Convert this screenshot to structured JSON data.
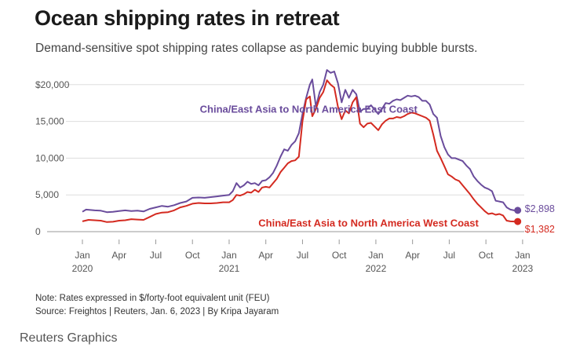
{
  "header": {
    "title": "Ocean shipping rates in retreat",
    "subtitle": "Demand-sensitive spot shipping rates collapse as pandemic buying bubble bursts."
  },
  "footer": {
    "note": "Note: Rates expressed in $/forty-foot equivalent unit (FEU)",
    "source": "Source: Freightos | Reuters, Jan. 6, 2023 | By Kripa Jayaram",
    "brand": "Reuters Graphics"
  },
  "colors": {
    "east": "#6a4c9c",
    "west": "#d42a20",
    "grid": "#dddddd",
    "axis": "#999999"
  },
  "chart_data": {
    "type": "line",
    "title": "Ocean shipping rates in retreat",
    "xlabel": "",
    "ylabel": "",
    "ylim": [
      0,
      20000
    ],
    "y_ticks": [
      {
        "value": 0,
        "label": "0"
      },
      {
        "value": 5000,
        "label": "5,000"
      },
      {
        "value": 10000,
        "label": "10,000"
      },
      {
        "value": 15000,
        "label": "15,000"
      },
      {
        "value": 20000,
        "label": "$20,000"
      }
    ],
    "x_ticks": [
      {
        "t": 0,
        "month": "Jan",
        "year": "2020"
      },
      {
        "t": 3,
        "month": "Apr"
      },
      {
        "t": 6,
        "month": "Jul"
      },
      {
        "t": 9,
        "month": "Oct"
      },
      {
        "t": 12,
        "month": "Jan",
        "year": "2021"
      },
      {
        "t": 15,
        "month": "Apr"
      },
      {
        "t": 18,
        "month": "Jul"
      },
      {
        "t": 21,
        "month": "Oct"
      },
      {
        "t": 24,
        "month": "Jan",
        "year": "2022"
      },
      {
        "t": 27,
        "month": "Apr"
      },
      {
        "t": 30,
        "month": "Jul"
      },
      {
        "t": 33,
        "month": "Oct"
      },
      {
        "t": 36,
        "month": "Jan",
        "year": "2023"
      }
    ],
    "x_unit": "months since Jan 2020",
    "series": [
      {
        "name": "China/East Asia to North America East Coast",
        "color": "#6a4c9c",
        "label_anchor": {
          "t": 18.5,
          "value": 16200
        },
        "end_label": "$2,898",
        "points": [
          [
            0,
            2700
          ],
          [
            0.3,
            3000
          ],
          [
            1,
            2900
          ],
          [
            1.5,
            2850
          ],
          [
            2,
            2650
          ],
          [
            2.5,
            2700
          ],
          [
            3,
            2800
          ],
          [
            3.5,
            2900
          ],
          [
            4,
            2800
          ],
          [
            4.5,
            2850
          ],
          [
            5,
            2750
          ],
          [
            5.5,
            3100
          ],
          [
            6,
            3300
          ],
          [
            6.5,
            3500
          ],
          [
            7,
            3400
          ],
          [
            7.5,
            3600
          ],
          [
            8,
            3900
          ],
          [
            8.5,
            4100
          ],
          [
            9,
            4600
          ],
          [
            9.5,
            4650
          ],
          [
            10,
            4600
          ],
          [
            10.5,
            4700
          ],
          [
            11,
            4800
          ],
          [
            11.5,
            4900
          ],
          [
            12,
            5000
          ],
          [
            12.3,
            5500
          ],
          [
            12.6,
            6600
          ],
          [
            12.9,
            6000
          ],
          [
            13.2,
            6300
          ],
          [
            13.5,
            6800
          ],
          [
            13.8,
            6500
          ],
          [
            14.1,
            6600
          ],
          [
            14.4,
            6300
          ],
          [
            14.7,
            6900
          ],
          [
            15,
            7000
          ],
          [
            15.3,
            7400
          ],
          [
            15.6,
            8000
          ],
          [
            15.9,
            9000
          ],
          [
            16.2,
            10200
          ],
          [
            16.5,
            11200
          ],
          [
            16.8,
            11000
          ],
          [
            17.1,
            11800
          ],
          [
            17.4,
            12300
          ],
          [
            17.7,
            13400
          ],
          [
            18,
            16000
          ],
          [
            18.3,
            18200
          ],
          [
            18.6,
            20000
          ],
          [
            18.8,
            20700
          ],
          [
            19.1,
            17000
          ],
          [
            19.4,
            19000
          ],
          [
            19.7,
            20000
          ],
          [
            20,
            22000
          ],
          [
            20.3,
            21600
          ],
          [
            20.6,
            21800
          ],
          [
            20.9,
            20200
          ],
          [
            21.2,
            17600
          ],
          [
            21.5,
            19300
          ],
          [
            21.8,
            18200
          ],
          [
            22.1,
            19300
          ],
          [
            22.4,
            18700
          ],
          [
            22.7,
            16300
          ],
          [
            23,
            16700
          ],
          [
            23.3,
            16700
          ],
          [
            23.6,
            17200
          ],
          [
            23.9,
            16600
          ],
          [
            24.2,
            16000
          ],
          [
            24.5,
            16700
          ],
          [
            24.8,
            17500
          ],
          [
            25.1,
            17400
          ],
          [
            25.4,
            17800
          ],
          [
            25.7,
            18000
          ],
          [
            26,
            17900
          ],
          [
            26.3,
            18200
          ],
          [
            26.6,
            18500
          ],
          [
            26.9,
            18400
          ],
          [
            27.2,
            18500
          ],
          [
            27.5,
            18300
          ],
          [
            27.8,
            17800
          ],
          [
            28.1,
            17800
          ],
          [
            28.4,
            17300
          ],
          [
            28.7,
            16000
          ],
          [
            29,
            15500
          ],
          [
            29.3,
            13000
          ],
          [
            29.6,
            11500
          ],
          [
            29.9,
            10500
          ],
          [
            30.2,
            10000
          ],
          [
            30.5,
            10000
          ],
          [
            30.8,
            9800
          ],
          [
            31.1,
            9600
          ],
          [
            31.4,
            9000
          ],
          [
            31.7,
            8500
          ],
          [
            32,
            7500
          ],
          [
            32.3,
            6900
          ],
          [
            32.6,
            6400
          ],
          [
            32.9,
            6000
          ],
          [
            33.2,
            5800
          ],
          [
            33.5,
            5500
          ],
          [
            33.8,
            4200
          ],
          [
            34.1,
            4100
          ],
          [
            34.4,
            4000
          ],
          [
            34.7,
            3300
          ],
          [
            35,
            3000
          ],
          [
            35.3,
            2900
          ],
          [
            35.6,
            2898
          ]
        ]
      },
      {
        "name": "China/East Asia to North America West Coast",
        "color": "#d42a20",
        "label_anchor": {
          "t": 23.4,
          "value": 700
        },
        "end_label": "$1,382",
        "points": [
          [
            0,
            1400
          ],
          [
            0.5,
            1600
          ],
          [
            1,
            1550
          ],
          [
            1.5,
            1500
          ],
          [
            2,
            1300
          ],
          [
            2.5,
            1350
          ],
          [
            3,
            1500
          ],
          [
            3.5,
            1550
          ],
          [
            4,
            1700
          ],
          [
            4.5,
            1650
          ],
          [
            5,
            1600
          ],
          [
            5.5,
            2000
          ],
          [
            6,
            2400
          ],
          [
            6.5,
            2600
          ],
          [
            7,
            2650
          ],
          [
            7.5,
            2900
          ],
          [
            8,
            3300
          ],
          [
            8.5,
            3500
          ],
          [
            9,
            3800
          ],
          [
            9.5,
            3900
          ],
          [
            10,
            3850
          ],
          [
            10.5,
            3850
          ],
          [
            11,
            3900
          ],
          [
            11.5,
            4000
          ],
          [
            12,
            4000
          ],
          [
            12.3,
            4300
          ],
          [
            12.6,
            5000
          ],
          [
            12.9,
            4900
          ],
          [
            13.2,
            5100
          ],
          [
            13.5,
            5400
          ],
          [
            13.8,
            5300
          ],
          [
            14.1,
            5700
          ],
          [
            14.4,
            5400
          ],
          [
            14.7,
            6000
          ],
          [
            15,
            6100
          ],
          [
            15.3,
            6000
          ],
          [
            15.6,
            6600
          ],
          [
            15.9,
            7200
          ],
          [
            16.2,
            8100
          ],
          [
            16.5,
            8700
          ],
          [
            16.8,
            9300
          ],
          [
            17.1,
            9600
          ],
          [
            17.4,
            9700
          ],
          [
            17.7,
            10200
          ],
          [
            18,
            15000
          ],
          [
            18.3,
            18000
          ],
          [
            18.6,
            18400
          ],
          [
            18.8,
            15700
          ],
          [
            19.1,
            16700
          ],
          [
            19.4,
            18200
          ],
          [
            19.7,
            19000
          ],
          [
            20,
            20600
          ],
          [
            20.3,
            20000
          ],
          [
            20.6,
            19600
          ],
          [
            20.9,
            17000
          ],
          [
            21.2,
            15300
          ],
          [
            21.5,
            16500
          ],
          [
            21.8,
            16100
          ],
          [
            22.1,
            17600
          ],
          [
            22.4,
            18300
          ],
          [
            22.7,
            14700
          ],
          [
            23,
            14200
          ],
          [
            23.3,
            14700
          ],
          [
            23.6,
            14800
          ],
          [
            23.9,
            14300
          ],
          [
            24.2,
            13800
          ],
          [
            24.5,
            14600
          ],
          [
            24.8,
            15100
          ],
          [
            25.1,
            15400
          ],
          [
            25.4,
            15400
          ],
          [
            25.7,
            15600
          ],
          [
            26,
            15500
          ],
          [
            26.3,
            15700
          ],
          [
            26.6,
            16000
          ],
          [
            26.9,
            16200
          ],
          [
            27.2,
            16100
          ],
          [
            27.5,
            15900
          ],
          [
            27.8,
            15700
          ],
          [
            28.1,
            15500
          ],
          [
            28.4,
            15100
          ],
          [
            28.7,
            13200
          ],
          [
            29,
            11000
          ],
          [
            29.3,
            10000
          ],
          [
            29.6,
            8900
          ],
          [
            29.9,
            7800
          ],
          [
            30.2,
            7500
          ],
          [
            30.5,
            7100
          ],
          [
            30.8,
            6900
          ],
          [
            31.1,
            6300
          ],
          [
            31.4,
            5700
          ],
          [
            31.7,
            5100
          ],
          [
            32,
            4400
          ],
          [
            32.3,
            3800
          ],
          [
            32.6,
            3300
          ],
          [
            32.9,
            2800
          ],
          [
            33.2,
            2400
          ],
          [
            33.5,
            2500
          ],
          [
            33.8,
            2300
          ],
          [
            34.1,
            2400
          ],
          [
            34.4,
            2200
          ],
          [
            34.7,
            1500
          ],
          [
            35,
            1400
          ],
          [
            35.3,
            1382
          ],
          [
            35.6,
            1382
          ]
        ]
      }
    ]
  }
}
